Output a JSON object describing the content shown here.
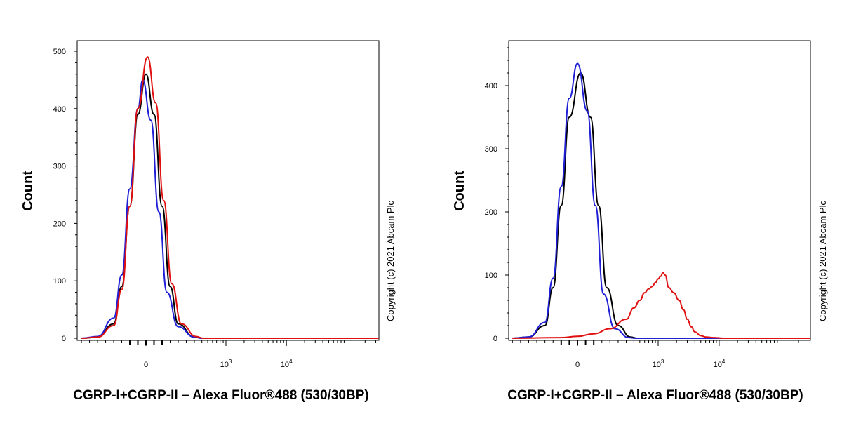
{
  "chart_data": [
    {
      "type": "line",
      "title": "",
      "xlabel": "CGRP-I+CGRP-II – Alexa Fluor®488 (530/30BP)",
      "ylabel": "Count",
      "ylim": [
        0,
        520
      ],
      "yticks": [
        "0",
        "100",
        "200",
        "300",
        "400",
        "500"
      ],
      "ytick_values": [
        0,
        100,
        200,
        300,
        400,
        500
      ],
      "xticks": [
        {
          "base": "0",
          "exp": "",
          "value": 0
        },
        {
          "base": "10",
          "exp": "3",
          "value": 1000
        },
        {
          "base": "10",
          "exp": "4",
          "value": 10000
        }
      ],
      "copyright": "Copyright (c) 2021 Abcam Plc",
      "grid": false,
      "series": [
        {
          "color": "#000000",
          "x": [
            -400,
            -300,
            -200,
            -150,
            -100,
            -50,
            0,
            50,
            100,
            150,
            200,
            300,
            400
          ],
          "values": [
            0,
            2,
            25,
            90,
            230,
            390,
            460,
            390,
            230,
            90,
            25,
            2,
            0
          ]
        },
        {
          "color": "#1f1fd6",
          "x": [
            -400,
            -300,
            -200,
            -150,
            -100,
            -50,
            -20,
            30,
            80,
            130,
            200,
            300,
            400
          ],
          "values": [
            0,
            3,
            35,
            110,
            260,
            400,
            450,
            380,
            220,
            80,
            20,
            2,
            0
          ]
        },
        {
          "color": "#e01010",
          "x": [
            -400,
            -300,
            -200,
            -150,
            -100,
            -50,
            10,
            60,
            110,
            160,
            220,
            320,
            420
          ],
          "values": [
            0,
            2,
            22,
            85,
            230,
            400,
            490,
            410,
            240,
            95,
            25,
            3,
            0
          ]
        }
      ]
    },
    {
      "type": "line",
      "title": "",
      "xlabel": "CGRP-I+CGRP-II – Alexa Fluor®488 (530/30BP)",
      "ylabel": "Count",
      "ylim": [
        0,
        460
      ],
      "yticks": [
        "0",
        "100",
        "200",
        "300",
        "400"
      ],
      "ytick_values": [
        0,
        100,
        200,
        300,
        400
      ],
      "xticks": [
        {
          "base": "0",
          "exp": "",
          "value": 0
        },
        {
          "base": "10",
          "exp": "3",
          "value": 1000
        },
        {
          "base": "10",
          "exp": "4",
          "value": 10000
        }
      ],
      "copyright": "Copyright (c) 2021 Abcam Plc",
      "grid": false,
      "series": [
        {
          "color": "#000000",
          "x": [
            -400,
            -300,
            -200,
            -150,
            -100,
            -50,
            20,
            80,
            130,
            180,
            250,
            350,
            450
          ],
          "values": [
            0,
            2,
            20,
            80,
            210,
            350,
            420,
            350,
            210,
            80,
            20,
            2,
            0
          ]
        },
        {
          "color": "#1f1fd6",
          "x": [
            -400,
            -300,
            -200,
            -150,
            -100,
            -50,
            0,
            60,
            110,
            160,
            230,
            330,
            430
          ],
          "values": [
            0,
            2,
            25,
            95,
            240,
            380,
            435,
            360,
            210,
            70,
            15,
            1,
            0
          ]
        },
        {
          "color": "#e01010",
          "x": [
            -400,
            -100,
            0,
            100,
            200,
            300,
            400,
            500,
            600,
            700,
            800,
            900,
            1000,
            1100,
            1200,
            1300,
            1500,
            1800,
            2200,
            2600,
            3000,
            3500,
            4000,
            5000,
            6000,
            8000,
            12000,
            30000
          ],
          "values": [
            0,
            1,
            3,
            7,
            15,
            30,
            48,
            60,
            72,
            78,
            82,
            88,
            94,
            98,
            104,
            100,
            80,
            72,
            60,
            45,
            30,
            18,
            10,
            4,
            2,
            1,
            0,
            0
          ]
        }
      ]
    }
  ]
}
